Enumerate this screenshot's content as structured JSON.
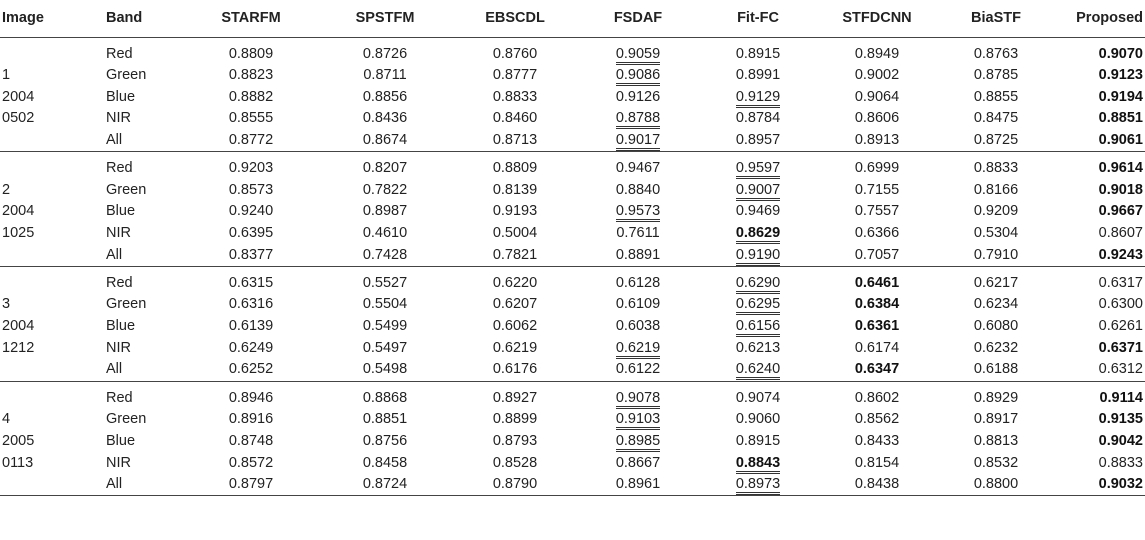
{
  "headers": [
    "Image",
    "Band",
    "STARFM",
    "SPSTFM",
    "EBSCDL",
    "FSDAF",
    "Fit-FC",
    "STFDCNN",
    "BiaSTF",
    "Proposed"
  ],
  "groups": [
    {
      "label": [
        "1",
        "2004",
        "0502"
      ],
      "rows": [
        {
          "band": "Red",
          "values": [
            "0.8809",
            "0.8726",
            "0.8760",
            "0.9059",
            "0.8915",
            "0.8949",
            "0.8763",
            "0.9070"
          ],
          "underline": [
            3
          ],
          "bold": [
            7
          ]
        },
        {
          "band": "Green",
          "values": [
            "0.8823",
            "0.8711",
            "0.8777",
            "0.9086",
            "0.8991",
            "0.9002",
            "0.8785",
            "0.9123"
          ],
          "underline": [
            3
          ],
          "bold": [
            7
          ]
        },
        {
          "band": "Blue",
          "values": [
            "0.8882",
            "0.8856",
            "0.8833",
            "0.9126",
            "0.9129",
            "0.9064",
            "0.8855",
            "0.9194"
          ],
          "underline": [
            4
          ],
          "bold": [
            7
          ]
        },
        {
          "band": "NIR",
          "values": [
            "0.8555",
            "0.8436",
            "0.8460",
            "0.8788",
            "0.8784",
            "0.8606",
            "0.8475",
            "0.8851"
          ],
          "underline": [
            3
          ],
          "bold": [
            7
          ]
        },
        {
          "band": "All",
          "values": [
            "0.8772",
            "0.8674",
            "0.8713",
            "0.9017",
            "0.8957",
            "0.8913",
            "0.8725",
            "0.9061"
          ],
          "underline": [
            3
          ],
          "bold": [
            7
          ]
        }
      ]
    },
    {
      "label": [
        "2",
        "2004",
        "1025"
      ],
      "rows": [
        {
          "band": "Red",
          "values": [
            "0.9203",
            "0.8207",
            "0.8809",
            "0.9467",
            "0.9597",
            "0.6999",
            "0.8833",
            "0.9614"
          ],
          "underline": [
            4
          ],
          "bold": [
            7
          ]
        },
        {
          "band": "Green",
          "values": [
            "0.8573",
            "0.7822",
            "0.8139",
            "0.8840",
            "0.9007",
            "0.7155",
            "0.8166",
            "0.9018"
          ],
          "underline": [
            4
          ],
          "bold": [
            7
          ]
        },
        {
          "band": "Blue",
          "values": [
            "0.9240",
            "0.8987",
            "0.9193",
            "0.9573",
            "0.9469",
            "0.7557",
            "0.9209",
            "0.9667"
          ],
          "underline": [
            3
          ],
          "bold": [
            7
          ]
        },
        {
          "band": "NIR",
          "values": [
            "0.6395",
            "0.4610",
            "0.5004",
            "0.7611",
            "0.8629",
            "0.6366",
            "0.5304",
            "0.8607"
          ],
          "underline": [
            4
          ],
          "bold": [
            4
          ]
        },
        {
          "band": "All",
          "values": [
            "0.8377",
            "0.7428",
            "0.7821",
            "0.8891",
            "0.9190",
            "0.7057",
            "0.7910",
            "0.9243"
          ],
          "underline": [
            4
          ],
          "bold": [
            7
          ]
        }
      ]
    },
    {
      "label": [
        "3",
        "2004",
        "1212"
      ],
      "rows": [
        {
          "band": "Red",
          "values": [
            "0.6315",
            "0.5527",
            "0.6220",
            "0.6128",
            "0.6290",
            "0.6461",
            "0.6217",
            "0.6317"
          ],
          "underline": [
            4
          ],
          "bold": [
            5
          ]
        },
        {
          "band": "Green",
          "values": [
            "0.6316",
            "0.5504",
            "0.6207",
            "0.6109",
            "0.6295",
            "0.6384",
            "0.6234",
            "0.6300"
          ],
          "underline": [
            4
          ],
          "bold": [
            5
          ]
        },
        {
          "band": "Blue",
          "values": [
            "0.6139",
            "0.5499",
            "0.6062",
            "0.6038",
            "0.6156",
            "0.6361",
            "0.6080",
            "0.6261"
          ],
          "underline": [
            4
          ],
          "bold": [
            5
          ]
        },
        {
          "band": "NIR",
          "values": [
            "0.6249",
            "0.5497",
            "0.6219",
            "0.6219",
            "0.6213",
            "0.6174",
            "0.6232",
            "0.6371"
          ],
          "underline": [
            3
          ],
          "bold": [
            7
          ]
        },
        {
          "band": "All",
          "values": [
            "0.6252",
            "0.5498",
            "0.6176",
            "0.6122",
            "0.6240",
            "0.6347",
            "0.6188",
            "0.6312"
          ],
          "underline": [
            4
          ],
          "bold": [
            5
          ]
        }
      ]
    },
    {
      "label": [
        "4",
        "2005",
        "0113"
      ],
      "rows": [
        {
          "band": "Red",
          "values": [
            "0.8946",
            "0.8868",
            "0.8927",
            "0.9078",
            "0.9074",
            "0.8602",
            "0.8929",
            "0.9114"
          ],
          "underline": [
            3
          ],
          "bold": [
            7
          ]
        },
        {
          "band": "Green",
          "values": [
            "0.8916",
            "0.8851",
            "0.8899",
            "0.9103",
            "0.9060",
            "0.8562",
            "0.8917",
            "0.9135"
          ],
          "underline": [
            3
          ],
          "bold": [
            7
          ]
        },
        {
          "band": "Blue",
          "values": [
            "0.8748",
            "0.8756",
            "0.8793",
            "0.8985",
            "0.8915",
            "0.8433",
            "0.8813",
            "0.9042"
          ],
          "underline": [
            3
          ],
          "bold": [
            7
          ]
        },
        {
          "band": "NIR",
          "values": [
            "0.8572",
            "0.8458",
            "0.8528",
            "0.8667",
            "0.8843",
            "0.8154",
            "0.8532",
            "0.8833"
          ],
          "underline": [
            4
          ],
          "bold": [
            4
          ]
        },
        {
          "band": "All",
          "values": [
            "0.8797",
            "0.8724",
            "0.8790",
            "0.8961",
            "0.8973",
            "0.8438",
            "0.8800",
            "0.9032"
          ],
          "underline": [
            4
          ],
          "bold": [
            7
          ]
        }
      ]
    }
  ]
}
